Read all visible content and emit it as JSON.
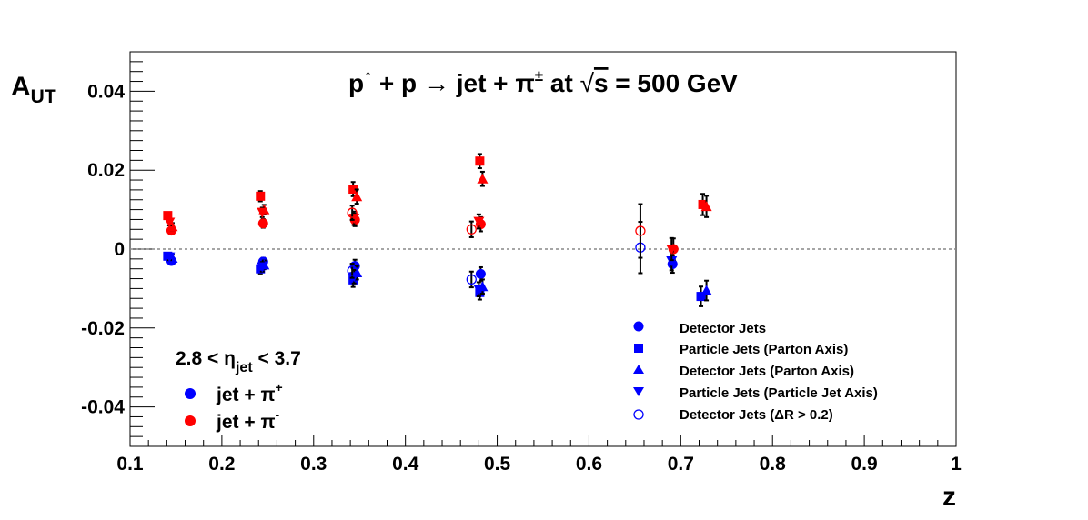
{
  "chart_data": {
    "type": "scatter",
    "title": {
      "p": "p",
      "up": "↑",
      "mid": " + p ",
      "arrow": "→",
      "jet": " jet + ",
      "pi": "π",
      "pm": "±",
      "at": " at ",
      "root": "√",
      "s": "s",
      "energy": " = 500 GeV"
    },
    "xlabel": "z",
    "ylabel": {
      "main": "A",
      "sub": "UT"
    },
    "xlim": [
      0.1,
      1.0
    ],
    "ylim": [
      -0.05,
      0.05
    ],
    "xticks": [
      "0.1",
      "0.2",
      "0.3",
      "0.4",
      "0.5",
      "0.6",
      "0.7",
      "0.8",
      "0.9",
      "1"
    ],
    "yticks": [
      "-0.04",
      "-0.02",
      "0",
      "0.02",
      "0.04"
    ],
    "zero_line": true,
    "eta_range": {
      "pre": "2.8 < ",
      "eta": "η",
      "sub": "jet",
      "post": " < 3.7"
    },
    "charge_legend": [
      {
        "label": "jet + ",
        "pi": "π",
        "sup": "+",
        "color": "#0000ff"
      },
      {
        "label": "jet + ",
        "pi": "π",
        "sup": "-",
        "color": "#ff0000"
      }
    ],
    "marker_legend": [
      {
        "marker": "circle",
        "label": "Detector Jets"
      },
      {
        "marker": "square",
        "label": "Particle Jets (Parton Axis)"
      },
      {
        "marker": "triangle-up",
        "label": "Detector Jets (Parton Axis)"
      },
      {
        "marker": "triangle-down",
        "label": "Particle Jets (Particle Jet Axis)"
      },
      {
        "marker": "open-circle",
        "label": "Detector Jets (ΔR > 0.2)"
      }
    ],
    "colors": {
      "pi_plus": "#0000ff",
      "pi_minus": "#ff0000",
      "error_bar": "#000000",
      "zero_line": "#888888"
    },
    "series": [
      {
        "name": "Detector Jets",
        "marker": "circle",
        "charge": "plus",
        "x": [
          0.145,
          0.245,
          0.345,
          0.482,
          0.691
        ],
        "y": [
          -0.003,
          -0.0032,
          -0.0043,
          -0.0063,
          -0.0038
        ],
        "err": [
          0.0009,
          0.001,
          0.0016,
          0.0017,
          0.0022
        ]
      },
      {
        "name": "Detector Jets",
        "marker": "circle",
        "charge": "minus",
        "x": [
          0.145,
          0.245,
          0.345,
          0.482,
          0.692
        ],
        "y": [
          0.0047,
          0.0065,
          0.0074,
          0.0063,
          0.0
        ],
        "err": [
          0.0009,
          0.0011,
          0.0016,
          0.0018,
          0.0027
        ]
      },
      {
        "name": "Particle Jets (Parton Axis)",
        "marker": "square",
        "charge": "plus",
        "x": [
          0.141,
          0.242,
          0.343,
          0.481,
          0.722
        ],
        "y": [
          -0.0018,
          -0.005,
          -0.0078,
          -0.011,
          -0.012
        ],
        "err": [
          0.0008,
          0.0012,
          0.0018,
          0.0018,
          0.0025
        ]
      },
      {
        "name": "Particle Jets (Parton Axis)",
        "marker": "square",
        "charge": "minus",
        "x": [
          0.141,
          0.242,
          0.343,
          0.481,
          0.724
        ],
        "y": [
          0.0085,
          0.0134,
          0.0152,
          0.0223,
          0.0113
        ],
        "err": [
          0.0008,
          0.0013,
          0.0018,
          0.0018,
          0.0027
        ]
      },
      {
        "name": "Detector Jets (Parton Axis)",
        "marker": "triangle-up",
        "charge": "plus",
        "x": [
          0.146,
          0.246,
          0.347,
          0.484,
          0.728
        ],
        "y": [
          -0.0023,
          -0.004,
          -0.006,
          -0.0095,
          -0.0105
        ],
        "err": [
          0.0009,
          0.0011,
          0.0017,
          0.0018,
          0.0025
        ]
      },
      {
        "name": "Detector Jets (Parton Axis)",
        "marker": "triangle-up",
        "charge": "minus",
        "x": [
          0.146,
          0.246,
          0.347,
          0.484,
          0.728
        ],
        "y": [
          0.0057,
          0.01,
          0.0133,
          0.0178,
          0.0108
        ],
        "err": [
          0.0009,
          0.0012,
          0.0018,
          0.0018,
          0.0027
        ]
      },
      {
        "name": "Particle Jets (Particle Jet Axis)",
        "marker": "triangle-down",
        "charge": "plus",
        "x": [
          0.143,
          0.244,
          0.344,
          0.48,
          0.69
        ],
        "y": [
          -0.002,
          -0.0045,
          -0.007,
          -0.0102,
          -0.003
        ],
        "err": [
          0.0008,
          0.0012,
          0.0017,
          0.0018,
          0.0024
        ]
      },
      {
        "name": "Particle Jets (Particle Jet Axis)",
        "marker": "triangle-down",
        "charge": "minus",
        "x": [
          0.143,
          0.244,
          0.344,
          0.48,
          0.69
        ],
        "y": [
          0.0068,
          0.0093,
          0.0078,
          0.007,
          0.0
        ],
        "err": [
          0.0008,
          0.0012,
          0.0017,
          0.0018,
          0.0028
        ]
      },
      {
        "name": "Detector Jets (ΔR > 0.2)",
        "marker": "open-circle",
        "charge": "plus",
        "x": [
          0.342,
          0.472,
          0.656
        ],
        "y": [
          -0.0055,
          -0.0077,
          0.0004
        ],
        "err": [
          0.0018,
          0.002,
          0.0065
        ]
      },
      {
        "name": "Detector Jets (ΔR > 0.2)",
        "marker": "open-circle",
        "charge": "minus",
        "x": [
          0.342,
          0.472,
          0.656
        ],
        "y": [
          0.0092,
          0.005,
          0.0046
        ],
        "err": [
          0.0018,
          0.002,
          0.0068
        ]
      }
    ]
  }
}
